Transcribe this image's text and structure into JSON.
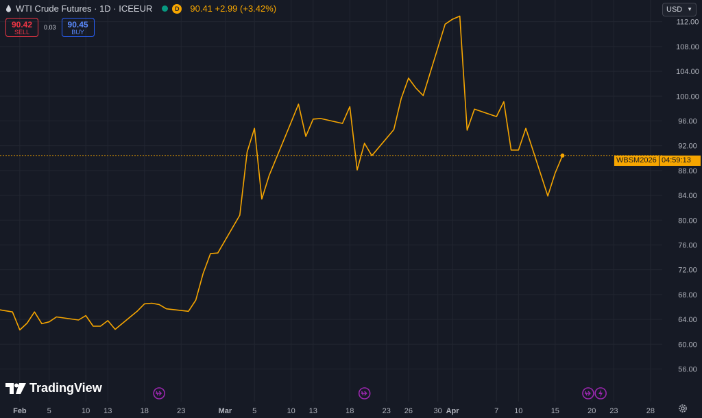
{
  "header": {
    "title": "WTI Crude Futures · 1D · ICEEUR",
    "interval_badge": "D",
    "last_price_text": "90.41 +2.99 (+3.42%)"
  },
  "trade": {
    "sell_price": "90.42",
    "sell_label": "SELL",
    "spread": "0.03",
    "buy_price": "90.45",
    "buy_label": "BUY"
  },
  "currency": "USD",
  "brand": "TradingView",
  "price_tag": {
    "symbol": "WBSM2026",
    "countdown": "04:59:13"
  },
  "colors": {
    "background": "#161a25",
    "line": "#f7a600",
    "grid": "#222631",
    "axis_text": "#b2b5be",
    "event": "#9c27b0"
  },
  "chart_data": {
    "type": "line",
    "ylim": [
      53.4,
      115.5
    ],
    "y_ticks": [
      "112.00",
      "108.00",
      "104.00",
      "100.00",
      "96.00",
      "92.00",
      "88.00",
      "84.00",
      "80.00",
      "76.00",
      "72.00",
      "68.00",
      "64.00",
      "60.00",
      "56.00"
    ],
    "x_ticks": [
      {
        "label": "Feb",
        "day": 0,
        "bold": true
      },
      {
        "label": "5",
        "day": 4
      },
      {
        "label": "10",
        "day": 9
      },
      {
        "label": "13",
        "day": 12
      },
      {
        "label": "18",
        "day": 17
      },
      {
        "label": "23",
        "day": 22
      },
      {
        "label": "Mar",
        "day": 28,
        "bold": true
      },
      {
        "label": "5",
        "day": 32
      },
      {
        "label": "10",
        "day": 37
      },
      {
        "label": "13",
        "day": 40
      },
      {
        "label": "18",
        "day": 45
      },
      {
        "label": "23",
        "day": 50
      },
      {
        "label": "26",
        "day": 53
      },
      {
        "label": "30",
        "day": 57
      },
      {
        "label": "Apr",
        "day": 59,
        "bold": true
      },
      {
        "label": "7",
        "day": 65
      },
      {
        "label": "10",
        "day": 68
      },
      {
        "label": "15",
        "day": 73
      },
      {
        "label": "20",
        "day": 78
      },
      {
        "label": "23",
        "day": 81
      },
      {
        "label": "28",
        "day": 86
      }
    ],
    "x_range_days": [
      -2.7,
      87.6
    ],
    "events": [
      {
        "day": 19,
        "type": "split"
      },
      {
        "day": 47,
        "type": "split"
      },
      {
        "day": 77.5,
        "type": "split"
      },
      {
        "day": 79.2,
        "type": "flash"
      }
    ],
    "current_value": 90.41,
    "series": [
      {
        "points": [
          {
            "day": -3,
            "value": 65.6
          },
          {
            "day": -2,
            "value": 65.4
          },
          {
            "day": -1,
            "value": 65.2
          },
          {
            "day": 0,
            "value": 62.3
          },
          {
            "day": 1,
            "value": 63.4
          },
          {
            "day": 2,
            "value": 65.2
          },
          {
            "day": 3,
            "value": 63.3
          },
          {
            "day": 4,
            "value": 63.6
          },
          {
            "day": 5,
            "value": 64.4
          },
          {
            "day": 8,
            "value": 63.9
          },
          {
            "day": 9,
            "value": 64.6
          },
          {
            "day": 10,
            "value": 62.9
          },
          {
            "day": 11,
            "value": 62.9
          },
          {
            "day": 12,
            "value": 63.8
          },
          {
            "day": 13,
            "value": 62.4
          },
          {
            "day": 16,
            "value": 65.3
          },
          {
            "day": 17,
            "value": 66.5
          },
          {
            "day": 18,
            "value": 66.6
          },
          {
            "day": 19,
            "value": 66.4
          },
          {
            "day": 20,
            "value": 65.7
          },
          {
            "day": 23,
            "value": 65.3
          },
          {
            "day": 24,
            "value": 67.1
          },
          {
            "day": 25,
            "value": 71.4
          },
          {
            "day": 26,
            "value": 74.6
          },
          {
            "day": 27,
            "value": 74.7
          },
          {
            "day": 30,
            "value": 80.8
          },
          {
            "day": 31,
            "value": 91.0
          },
          {
            "day": 32,
            "value": 94.8
          },
          {
            "day": 33,
            "value": 83.4
          },
          {
            "day": 34,
            "value": 87.2
          },
          {
            "day": 37,
            "value": 95.8
          },
          {
            "day": 38,
            "value": 98.7
          },
          {
            "day": 39,
            "value": 93.5
          },
          {
            "day": 40,
            "value": 96.3
          },
          {
            "day": 41,
            "value": 96.4
          },
          {
            "day": 44,
            "value": 95.6
          },
          {
            "day": 45,
            "value": 98.3
          },
          {
            "day": 46,
            "value": 88.1
          },
          {
            "day": 47,
            "value": 92.4
          },
          {
            "day": 48,
            "value": 90.4
          },
          {
            "day": 51,
            "value": 94.6
          },
          {
            "day": 52,
            "value": 99.6
          },
          {
            "day": 53,
            "value": 102.9
          },
          {
            "day": 54,
            "value": 101.3
          },
          {
            "day": 55,
            "value": 100.1
          },
          {
            "day": 58,
            "value": 111.6
          },
          {
            "day": 59,
            "value": 112.4
          },
          {
            "day": 60,
            "value": 112.9
          },
          {
            "day": 61,
            "value": 94.5
          },
          {
            "day": 62,
            "value": 97.9
          },
          {
            "day": 65,
            "value": 96.7
          },
          {
            "day": 66,
            "value": 99.1
          },
          {
            "day": 67,
            "value": 91.3
          },
          {
            "day": 68,
            "value": 91.3
          },
          {
            "day": 69,
            "value": 94.8
          },
          {
            "day": 72,
            "value": 83.9
          },
          {
            "day": 73,
            "value": 87.6
          },
          {
            "day": 74,
            "value": 90.41
          }
        ]
      }
    ]
  }
}
